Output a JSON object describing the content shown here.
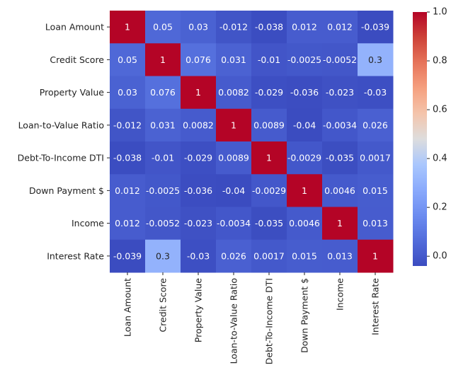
{
  "chart_data": {
    "type": "heatmap",
    "title": "",
    "xlabel": "",
    "ylabel": "",
    "row_labels": [
      "Loan Amount",
      "Credit Score",
      "Property Value",
      "Loan-to-Value Ratio",
      "Debt-To-Income DTI",
      "Down Payment $",
      "Income",
      "Interest Rate"
    ],
    "col_labels": [
      "Loan Amount",
      "Credit Score",
      "Property Value",
      "Loan-to-Value Ratio",
      "Debt-To-Income DTI",
      "Down Payment $",
      "Income",
      "Interest Rate"
    ],
    "values": [
      [
        1,
        0.05,
        0.03,
        -0.012,
        -0.038,
        0.012,
        0.012,
        -0.039
      ],
      [
        0.05,
        1,
        0.076,
        0.031,
        -0.01,
        -0.0025,
        -0.0052,
        0.3
      ],
      [
        0.03,
        0.076,
        1,
        0.0082,
        -0.029,
        -0.036,
        -0.023,
        -0.03
      ],
      [
        -0.012,
        0.031,
        0.0082,
        1,
        0.0089,
        -0.04,
        -0.0034,
        0.026
      ],
      [
        -0.038,
        -0.01,
        -0.029,
        0.0089,
        1,
        -0.0029,
        -0.035,
        0.0017
      ],
      [
        0.012,
        -0.0025,
        -0.036,
        -0.04,
        -0.0029,
        1,
        0.0046,
        0.015
      ],
      [
        0.012,
        -0.0052,
        -0.023,
        -0.0034,
        -0.035,
        0.0046,
        1,
        0.013
      ],
      [
        -0.039,
        0.3,
        -0.03,
        0.026,
        0.0017,
        0.015,
        0.013,
        1
      ]
    ],
    "value_labels": [
      [
        "1",
        "0.05",
        "0.03",
        "-0.012",
        "-0.038",
        "0.012",
        "0.012",
        "-0.039"
      ],
      [
        "0.05",
        "1",
        "0.076",
        "0.031",
        "-0.01",
        "-0.0025",
        "-0.0052",
        "0.3"
      ],
      [
        "0.03",
        "0.076",
        "1",
        "0.0082",
        "-0.029",
        "-0.036",
        "-0.023",
        "-0.03"
      ],
      [
        "-0.012",
        "0.031",
        "0.0082",
        "1",
        "0.0089",
        "-0.04",
        "-0.0034",
        "0.026"
      ],
      [
        "-0.038",
        "-0.01",
        "-0.029",
        "0.0089",
        "1",
        "-0.0029",
        "-0.035",
        "0.0017"
      ],
      [
        "0.012",
        "-0.0025",
        "-0.036",
        "-0.04",
        "-0.0029",
        "1",
        "0.0046",
        "0.015"
      ],
      [
        "0.012",
        "-0.0052",
        "-0.023",
        "-0.0034",
        "-0.035",
        "0.0046",
        "1",
        "0.013"
      ],
      [
        "-0.039",
        "0.3",
        "-0.03",
        "0.026",
        "0.0017",
        "0.015",
        "0.013",
        "1"
      ]
    ],
    "colormap": "coolwarm",
    "color_range": [
      -0.04,
      1.0
    ],
    "colorbar": {
      "ticks": [
        0.0,
        0.2,
        0.4,
        0.6,
        0.8,
        1.0
      ],
      "tick_labels": [
        "0.0",
        "0.2",
        "0.4",
        "0.6",
        "0.8",
        "1.0"
      ],
      "placement": "right"
    },
    "grid": false,
    "annotations": true
  }
}
